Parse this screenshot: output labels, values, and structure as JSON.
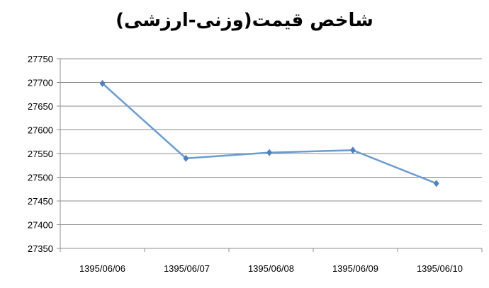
{
  "chart_data": {
    "type": "line",
    "title": "شاخص قیمت(وزنی-ارزشی)",
    "categories": [
      "1395/06/06",
      "1395/06/07",
      "1395/06/08",
      "1395/06/09",
      "1395/06/10"
    ],
    "values": [
      27698,
      27540,
      27552,
      27557,
      27487
    ],
    "ylim": [
      27350,
      27750
    ],
    "yticks": [
      27350,
      27400,
      27450,
      27500,
      27550,
      27600,
      27650,
      27700,
      27750
    ],
    "grid": true,
    "legend": "none",
    "line_color": "#6b9bd1",
    "marker": "diamond"
  }
}
